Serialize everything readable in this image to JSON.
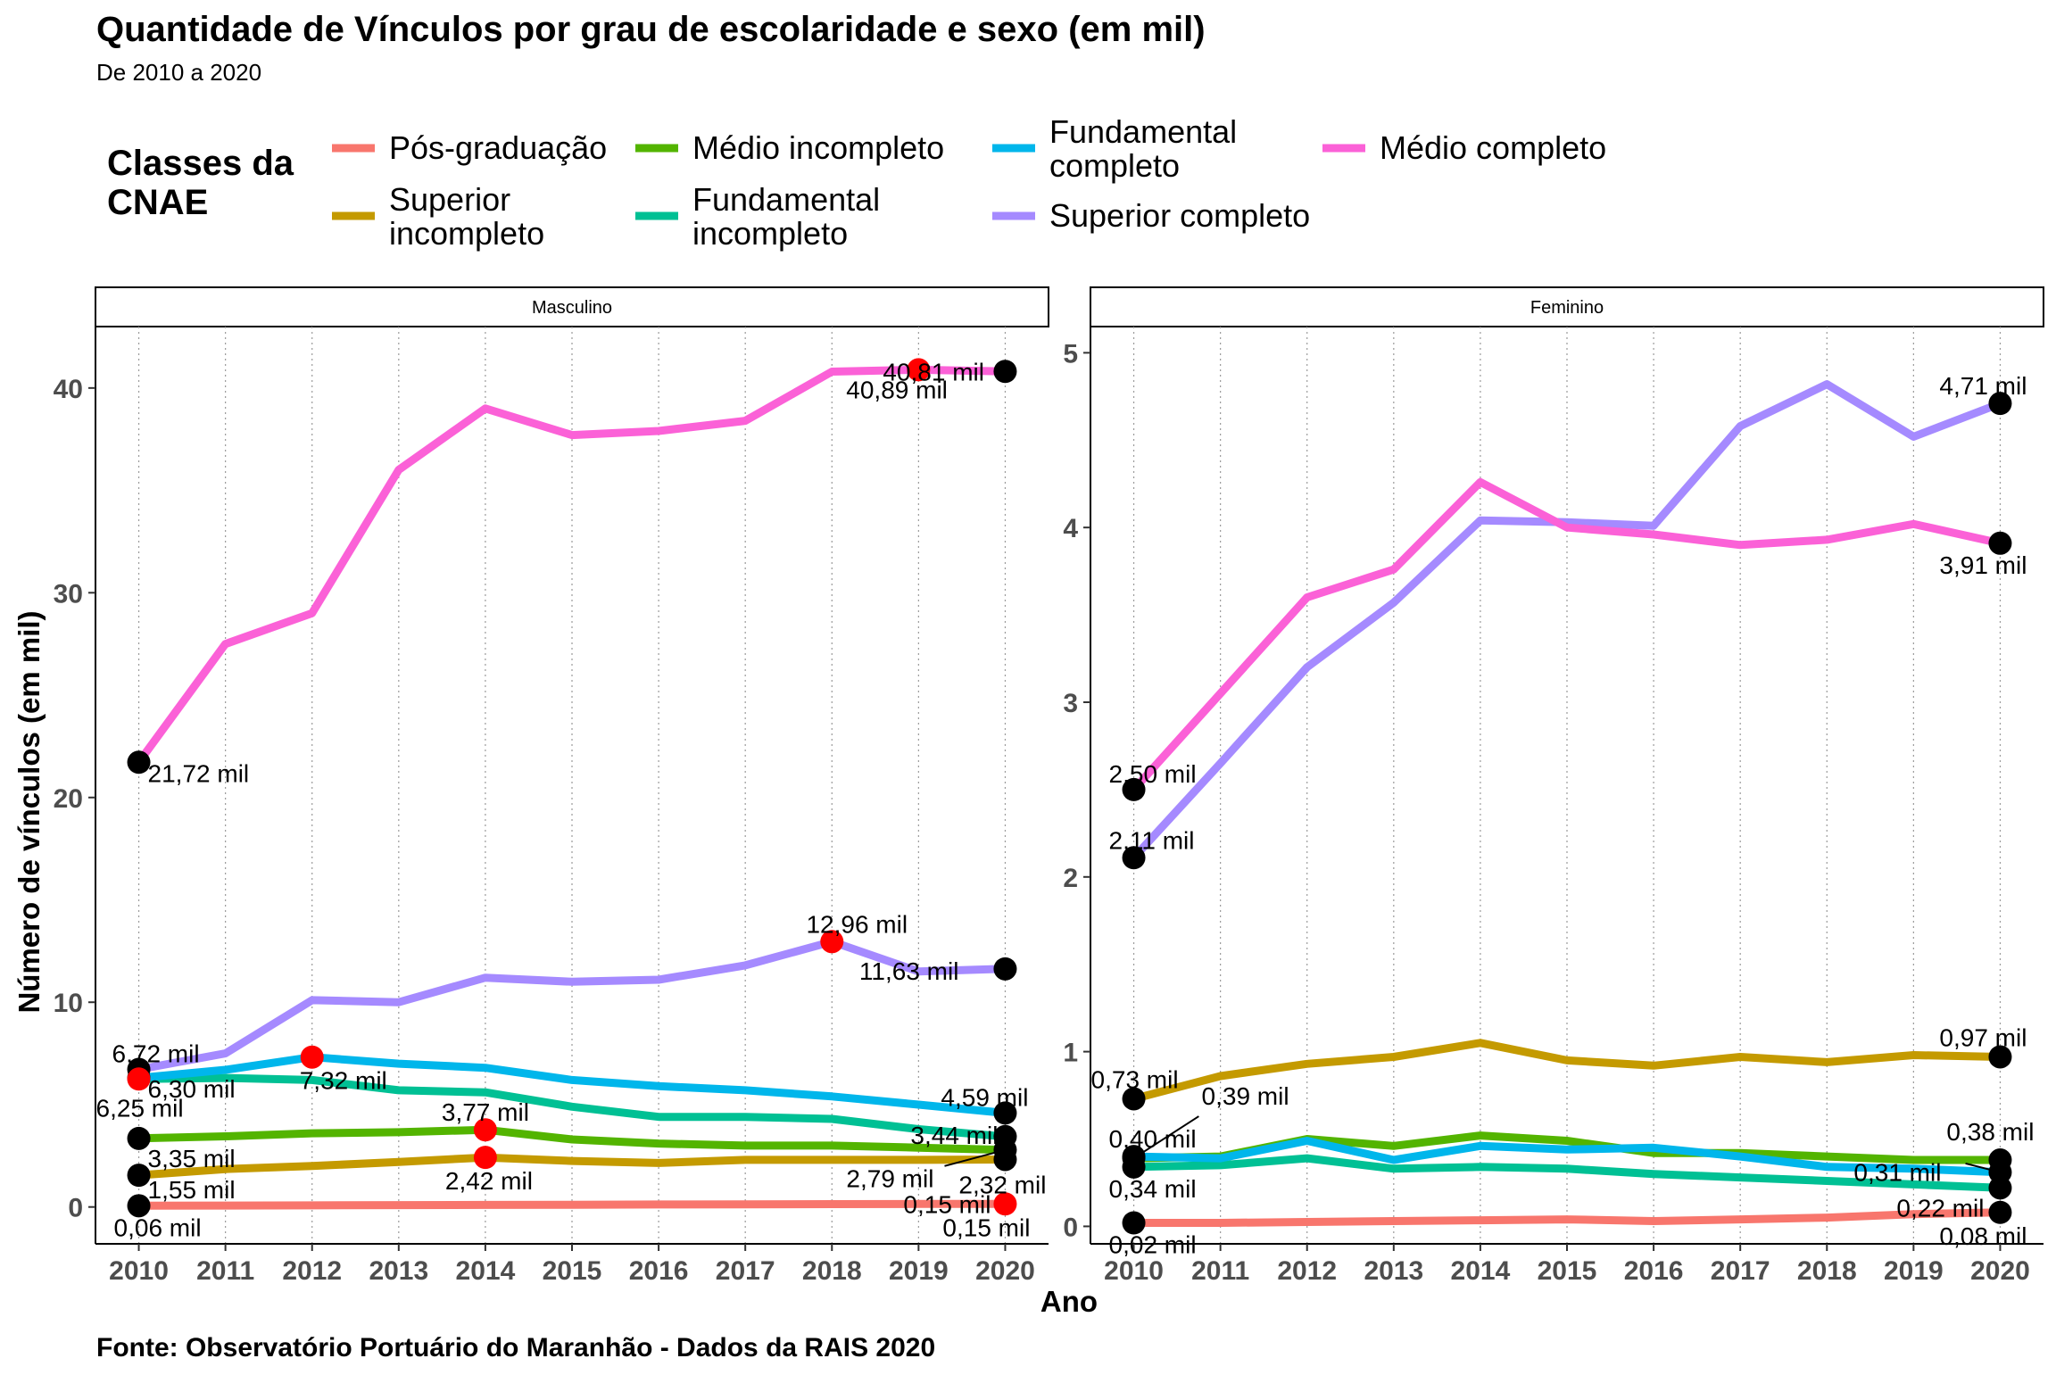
{
  "chart_data": {
    "type": "line",
    "title": "Quantidade de Vínculos por grau de escolaridade e sexo (em mil)",
    "subtitle": "De 2010 a 2020",
    "caption": "Fonte: Observatório Portuário do Maranhão - Dados da RAIS 2020",
    "xlabel": "Ano",
    "ylabel": "Número de vínculos (em mil)",
    "legend_title": "Classes da CNAE",
    "legend_position": "top",
    "grid": "vertical-dotted",
    "x": [
      2010,
      2011,
      2012,
      2013,
      2014,
      2015,
      2016,
      2017,
      2018,
      2019,
      2020
    ],
    "series_meta": [
      {
        "key": "pos",
        "name": "Pós-graduação",
        "color": "#F8766D"
      },
      {
        "key": "supinc",
        "name": "Superior incompleto",
        "color": "#C49A00"
      },
      {
        "key": "medinc",
        "name": "Médio incompleto",
        "color": "#53B400"
      },
      {
        "key": "fundinc",
        "name": "Fundamental incompleto",
        "color": "#00C094"
      },
      {
        "key": "fundcomp",
        "name": "Fundamental completo",
        "color": "#00B6EB"
      },
      {
        "key": "supcomp",
        "name": "Superior completo",
        "color": "#A58AFF"
      },
      {
        "key": "medcomp",
        "name": "Médio completo",
        "color": "#FB61D7"
      }
    ],
    "panels": [
      {
        "name": "Masculino",
        "ylim": [
          -1.8,
          43
        ],
        "yticks": [
          0,
          10,
          20,
          30,
          40
        ],
        "series": {
          "pos": [
            0.06,
            0.07,
            0.08,
            0.09,
            0.1,
            0.11,
            0.12,
            0.13,
            0.14,
            0.15,
            0.15
          ],
          "supinc": [
            1.55,
            1.85,
            2.0,
            2.2,
            2.42,
            2.25,
            2.15,
            2.3,
            2.3,
            2.3,
            2.32
          ],
          "medinc": [
            3.35,
            3.45,
            3.6,
            3.65,
            3.77,
            3.3,
            3.1,
            3.0,
            3.0,
            2.9,
            2.79
          ],
          "fundinc": [
            6.25,
            6.3,
            6.2,
            5.7,
            5.6,
            4.9,
            4.4,
            4.4,
            4.3,
            3.8,
            3.44
          ],
          "fundcomp": [
            6.3,
            6.7,
            7.32,
            7.0,
            6.8,
            6.2,
            5.9,
            5.7,
            5.4,
            5.0,
            4.59
          ],
          "supcomp": [
            6.72,
            7.5,
            10.1,
            10.0,
            11.2,
            11.0,
            11.1,
            11.8,
            12.96,
            11.5,
            11.63
          ],
          "medcomp": [
            21.72,
            27.5,
            29.0,
            36.0,
            39.0,
            37.7,
            37.9,
            38.4,
            40.8,
            40.89,
            40.81
          ]
        },
        "markers_black": [
          {
            "series": "medcomp",
            "x": 2010
          },
          {
            "series": "supcomp",
            "x": 2010
          },
          {
            "series": "fundcomp",
            "x": 2010
          },
          {
            "series": "medinc",
            "x": 2010
          },
          {
            "series": "supinc",
            "x": 2010
          },
          {
            "series": "pos",
            "x": 2010
          },
          {
            "series": "medcomp",
            "x": 2020
          },
          {
            "series": "supcomp",
            "x": 2020
          },
          {
            "series": "fundcomp",
            "x": 2020
          },
          {
            "series": "fundinc",
            "x": 2020
          },
          {
            "series": "medinc",
            "x": 2020
          },
          {
            "series": "supinc",
            "x": 2020
          }
        ],
        "markers_red": [
          {
            "series": "medcomp",
            "x": 2019
          },
          {
            "series": "supcomp",
            "x": 2018
          },
          {
            "series": "fundcomp",
            "x": 2012
          },
          {
            "series": "fundinc",
            "x": 2010
          },
          {
            "series": "medinc",
            "x": 2014
          },
          {
            "series": "supinc",
            "x": 2014
          },
          {
            "series": "pos",
            "x": 2020
          }
        ],
        "labels": [
          {
            "text": "21,72 mil",
            "x": 2010,
            "y": 21.72,
            "dx": 10,
            "dy": 22,
            "anchor": "start"
          },
          {
            "text": "6,72 mil",
            "x": 2010,
            "y": 6.72,
            "dx": -30,
            "dy": -8,
            "anchor": "start"
          },
          {
            "text": "6,30 mil",
            "x": 2010,
            "y": 6.3,
            "dx": 10,
            "dy": 22,
            "anchor": "start"
          },
          {
            "text": "6,25 mil",
            "x": 2010,
            "y": 6.25,
            "dx": -48,
            "dy": 42,
            "anchor": "start"
          },
          {
            "text": "3,35 mil",
            "x": 2010,
            "y": 3.35,
            "dx": 10,
            "dy": 32,
            "anchor": "start"
          },
          {
            "text": "1,55 mil",
            "x": 2010,
            "y": 1.55,
            "dx": 10,
            "dy": 26,
            "anchor": "start"
          },
          {
            "text": "0,06 mil",
            "x": 2010,
            "y": 0.06,
            "dx": -28,
            "dy": 34,
            "anchor": "start"
          },
          {
            "text": "7,32 mil",
            "x": 2012,
            "y": 7.32,
            "dx": -14,
            "dy": 36,
            "anchor": "start"
          },
          {
            "text": "3,77 mil",
            "x": 2014,
            "y": 3.77,
            "dx": 0,
            "dy": -10,
            "anchor": "middle"
          },
          {
            "text": "2,42 mil",
            "x": 2014,
            "y": 2.42,
            "dx": 4,
            "dy": 36,
            "anchor": "middle"
          },
          {
            "text": "12,96 mil",
            "x": 2018,
            "y": 12.96,
            "dx": 28,
            "dy": -10,
            "anchor": "middle"
          },
          {
            "text": "40,81 mil",
            "x": 2019,
            "y": 40.81,
            "dx": -40,
            "dy": 10,
            "anchor": "start"
          },
          {
            "text": "40,89 mil",
            "x": 2018,
            "y": 40.89,
            "dx": 16,
            "dy": 32,
            "anchor": "start"
          },
          {
            "text": "11,63 mil",
            "x": 2020,
            "y": 11.63,
            "dx": -52,
            "dy": 12,
            "anchor": "end"
          },
          {
            "text": "4,59 mil",
            "x": 2020,
            "y": 4.59,
            "dx": 26,
            "dy": -8,
            "anchor": "end"
          },
          {
            "text": "3,44 mil",
            "x": 2020,
            "y": 3.44,
            "dx": -8,
            "dy": 8,
            "anchor": "end"
          },
          {
            "text": "2,79 mil",
            "x": 2020,
            "y": 2.79,
            "dx": -80,
            "dy": 42,
            "anchor": "end"
          },
          {
            "text": "2,32 mil",
            "x": 2020,
            "y": 2.32,
            "dx": 46,
            "dy": 38,
            "anchor": "end"
          },
          {
            "text": "0,15 mil",
            "x": 2020,
            "y": 0.15,
            "dx": -16,
            "dy": 10,
            "anchor": "end"
          },
          {
            "text": "0,15 mil",
            "x": 2020,
            "y": 0.15,
            "dx": 28,
            "dy": 36,
            "anchor": "end"
          }
        ],
        "leaders": [
          {
            "from_x": 2020,
            "from_y": 2.79,
            "to_x": 2019.3,
            "to_y": 2.0
          }
        ]
      },
      {
        "name": "Feminino",
        "ylim": [
          -0.1,
          5.15
        ],
        "yticks": [
          0,
          1,
          2,
          3,
          4,
          5
        ],
        "series": {
          "pos": [
            0.02,
            0.02,
            0.025,
            0.03,
            0.035,
            0.04,
            0.03,
            0.04,
            0.05,
            0.07,
            0.08
          ],
          "supinc": [
            0.73,
            0.86,
            0.93,
            0.97,
            1.05,
            0.95,
            0.92,
            0.97,
            0.94,
            0.98,
            0.97
          ],
          "medinc": [
            0.39,
            0.4,
            0.5,
            0.46,
            0.52,
            0.49,
            0.42,
            0.42,
            0.4,
            0.38,
            0.38
          ],
          "fundinc": [
            0.34,
            0.35,
            0.39,
            0.33,
            0.34,
            0.33,
            0.3,
            0.28,
            0.26,
            0.24,
            0.22
          ],
          "fundcomp": [
            0.4,
            0.39,
            0.49,
            0.38,
            0.46,
            0.44,
            0.45,
            0.4,
            0.34,
            0.33,
            0.31
          ],
          "supcomp": [
            2.11,
            2.65,
            3.2,
            3.57,
            4.04,
            4.03,
            4.01,
            4.58,
            4.82,
            4.52,
            4.71
          ],
          "medcomp": [
            2.5,
            3.05,
            3.6,
            3.76,
            4.26,
            4.0,
            3.96,
            3.9,
            3.93,
            4.02,
            3.91
          ]
        },
        "markers_black": [
          {
            "series": "medcomp",
            "x": 2010
          },
          {
            "series": "supcomp",
            "x": 2010
          },
          {
            "series": "supinc",
            "x": 2010
          },
          {
            "series": "fundcomp",
            "x": 2010
          },
          {
            "series": "medinc",
            "x": 2010
          },
          {
            "series": "fundinc",
            "x": 2010
          },
          {
            "series": "pos",
            "x": 2010
          },
          {
            "series": "supcomp",
            "x": 2020
          },
          {
            "series": "medcomp",
            "x": 2020
          },
          {
            "series": "supinc",
            "x": 2020
          },
          {
            "series": "medinc",
            "x": 2020
          },
          {
            "series": "fundcomp",
            "x": 2020
          },
          {
            "series": "fundinc",
            "x": 2020
          },
          {
            "series": "pos",
            "x": 2020
          }
        ],
        "markers_red": [],
        "labels": [
          {
            "text": "2,50 mil",
            "x": 2010,
            "y": 2.5,
            "dx": -28,
            "dy": -8,
            "anchor": "start"
          },
          {
            "text": "2,11 mil",
            "x": 2010,
            "y": 2.11,
            "dx": -28,
            "dy": -10,
            "anchor": "start"
          },
          {
            "text": "0,73 mil",
            "x": 2010,
            "y": 0.73,
            "dx": -48,
            "dy": -12,
            "anchor": "start"
          },
          {
            "text": "0,39 mil",
            "x": 2010,
            "y": 0.39,
            "dx": 76,
            "dy": -60,
            "anchor": "start"
          },
          {
            "text": "0,40 mil",
            "x": 2010,
            "y": 0.4,
            "dx": -28,
            "dy": -10,
            "anchor": "start"
          },
          {
            "text": "0,34 mil",
            "x": 2010,
            "y": 0.34,
            "dx": -28,
            "dy": 34,
            "anchor": "start"
          },
          {
            "text": "0,02 mil",
            "x": 2010,
            "y": 0.02,
            "dx": -28,
            "dy": 34,
            "anchor": "start"
          },
          {
            "text": "4,71 mil",
            "x": 2020,
            "y": 4.71,
            "dx": 30,
            "dy": -10,
            "anchor": "end"
          },
          {
            "text": "3,91 mil",
            "x": 2020,
            "y": 3.91,
            "dx": 30,
            "dy": 34,
            "anchor": "end"
          },
          {
            "text": "0,97 mil",
            "x": 2020,
            "y": 0.97,
            "dx": 30,
            "dy": -12,
            "anchor": "end"
          },
          {
            "text": "0,38 mil",
            "x": 2020,
            "y": 0.38,
            "dx": 38,
            "dy": -22,
            "anchor": "end"
          },
          {
            "text": "0,31 mil",
            "x": 2020,
            "y": 0.31,
            "dx": -66,
            "dy": 10,
            "anchor": "end"
          },
          {
            "text": "0,22 mil",
            "x": 2020,
            "y": 0.22,
            "dx": -18,
            "dy": 32,
            "anchor": "end"
          },
          {
            "text": "0,08 mil",
            "x": 2020,
            "y": 0.08,
            "dx": 30,
            "dy": 36,
            "anchor": "end"
          }
        ],
        "leaders": [
          {
            "from_x": 2010,
            "from_y": 0.39,
            "to_x": 2010.75,
            "to_y": 0.63
          },
          {
            "from_x": 2020,
            "from_y": 0.31,
            "to_x": 2019.6,
            "to_y": 0.36
          }
        ]
      }
    ]
  }
}
